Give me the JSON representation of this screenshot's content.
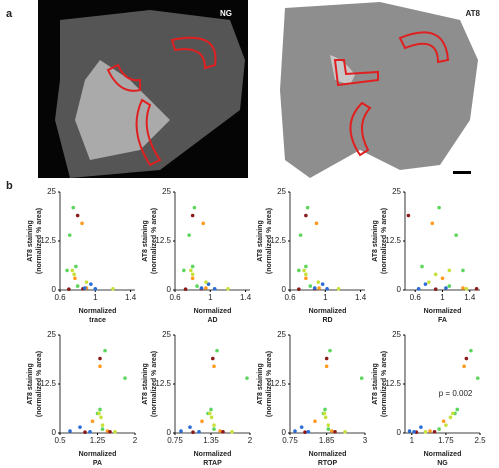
{
  "figure": {
    "panel_a": "a",
    "panel_b": "b",
    "image_labels": [
      "NG",
      "AT8"
    ]
  },
  "chart_data": [
    {
      "type": "scatter",
      "xlabel": [
        "Normalized",
        "trace"
      ],
      "ylabel": [
        "AT8 staining",
        "(normalized % area)"
      ],
      "xlim": [
        0.6,
        1.45
      ],
      "ylim": [
        0,
        25
      ],
      "xticks": [
        0.6,
        1,
        1.4
      ],
      "yticks": [
        0,
        12.5,
        25
      ],
      "series": [
        {
          "color": "#5cd65c",
          "x": [
            0.75,
            0.71,
            0.78,
            0.68,
            0.8
          ],
          "y": [
            21,
            14,
            6,
            5,
            1
          ]
        },
        {
          "color": "#ff9a1f",
          "x": [
            0.85,
            0.77,
            0.9
          ],
          "y": [
            17,
            3,
            0.5
          ]
        },
        {
          "color": "#8b1a1a",
          "x": [
            0.8,
            0.86,
            0.7
          ],
          "y": [
            19,
            0.3,
            0.2
          ]
        },
        {
          "color": "#2a6bd6",
          "x": [
            0.95,
            0.88,
            1.0
          ],
          "y": [
            1.5,
            0.5,
            0.3
          ]
        },
        {
          "color": "#c8e03a",
          "x": [
            0.74,
            0.9,
            1.2,
            0.76
          ],
          "y": [
            5,
            2,
            0.3,
            4
          ]
        }
      ]
    },
    {
      "type": "scatter",
      "xlabel": [
        "Normalized",
        "AD"
      ],
      "ylabel": [
        "AT8 staining",
        "(normalized % area)"
      ],
      "xlim": [
        0.6,
        1.45
      ],
      "ylim": [
        0,
        25
      ],
      "xticks": [
        0.6,
        1,
        1.4
      ],
      "yticks": [
        0,
        12.5,
        25
      ],
      "series": [
        {
          "color": "#5cd65c",
          "x": [
            0.82,
            0.76,
            0.8,
            0.7,
            0.85
          ],
          "y": [
            21,
            14,
            6,
            5,
            1
          ]
        },
        {
          "color": "#ff9a1f",
          "x": [
            0.92,
            0.8,
            0.95
          ],
          "y": [
            17,
            3,
            0.5
          ]
        },
        {
          "color": "#8b1a1a",
          "x": [
            0.8,
            0.9,
            0.72
          ],
          "y": [
            19,
            0.3,
            0.2
          ]
        },
        {
          "color": "#2a6bd6",
          "x": [
            0.98,
            0.9,
            1.05
          ],
          "y": [
            1.5,
            0.5,
            0.3
          ]
        },
        {
          "color": "#c8e03a",
          "x": [
            0.78,
            0.95,
            1.2,
            0.8
          ],
          "y": [
            5,
            2,
            0.3,
            4
          ]
        }
      ]
    },
    {
      "type": "scatter",
      "xlabel": [
        "Normalized",
        "RD"
      ],
      "ylabel": [
        "AT8 staining",
        "(normalized % area)"
      ],
      "xlim": [
        0.6,
        1.45
      ],
      "ylim": [
        0,
        25
      ],
      "xticks": [
        0.6,
        1,
        1.4
      ],
      "yticks": [
        0,
        12.5,
        25
      ],
      "series": [
        {
          "color": "#5cd65c",
          "x": [
            0.8,
            0.72,
            0.78,
            0.7,
            0.83
          ],
          "y": [
            21,
            14,
            6,
            5,
            1
          ]
        },
        {
          "color": "#ff9a1f",
          "x": [
            0.9,
            0.78,
            0.93
          ],
          "y": [
            17,
            3,
            0.5
          ]
        },
        {
          "color": "#8b1a1a",
          "x": [
            0.78,
            0.88,
            0.7
          ],
          "y": [
            19,
            0.3,
            0.2
          ]
        },
        {
          "color": "#2a6bd6",
          "x": [
            0.97,
            0.88,
            1.02
          ],
          "y": [
            1.5,
            0.5,
            0.3
          ]
        },
        {
          "color": "#c8e03a",
          "x": [
            0.76,
            0.92,
            1.15,
            0.78
          ],
          "y": [
            5,
            2,
            0.3,
            4
          ]
        }
      ]
    },
    {
      "type": "scatter",
      "xlabel": [
        "Normalized",
        "FA"
      ],
      "ylabel": [
        "AT8 staining",
        "(normalized % area)"
      ],
      "xlim": [
        0.45,
        1.55
      ],
      "ylim": [
        0,
        25
      ],
      "xticks": [
        0.6,
        1,
        1.4
      ],
      "yticks": [
        0,
        12.5,
        25
      ],
      "series": [
        {
          "color": "#5cd65c",
          "x": [
            0.95,
            1.2,
            0.7,
            1.3,
            1.1
          ],
          "y": [
            21,
            14,
            6,
            5,
            1
          ]
        },
        {
          "color": "#ff9a1f",
          "x": [
            0.85,
            1.0,
            1.3
          ],
          "y": [
            17,
            3,
            0.5
          ]
        },
        {
          "color": "#8b1a1a",
          "x": [
            0.5,
            1.5,
            0.9
          ],
          "y": [
            19,
            0.3,
            0.2
          ]
        },
        {
          "color": "#2a6bd6",
          "x": [
            0.75,
            1.05,
            0.65
          ],
          "y": [
            1.5,
            0.5,
            0.3
          ]
        },
        {
          "color": "#c8e03a",
          "x": [
            1.1,
            0.8,
            1.35,
            0.9
          ],
          "y": [
            5,
            2,
            0.3,
            4
          ]
        }
      ]
    },
    {
      "type": "scatter",
      "xlabel": [
        "Normalized",
        "PA"
      ],
      "ylabel": [
        "AT8 staining",
        "(normalized % area)"
      ],
      "xlim": [
        0.5,
        2
      ],
      "ylim": [
        0,
        25
      ],
      "xticks": [
        0.5,
        1.25,
        2
      ],
      "yticks": [
        0,
        12.5,
        25
      ],
      "series": [
        {
          "color": "#5cd65c",
          "x": [
            1.4,
            1.8,
            1.3,
            1.25,
            1.35
          ],
          "y": [
            21,
            14,
            6,
            5,
            1
          ]
        },
        {
          "color": "#ff9a1f",
          "x": [
            1.3,
            1.15,
            1.45
          ],
          "y": [
            17,
            3,
            0.5
          ]
        },
        {
          "color": "#8b1a1a",
          "x": [
            1.3,
            1.5,
            1.0
          ],
          "y": [
            19,
            0.3,
            0.2
          ]
        },
        {
          "color": "#2a6bd6",
          "x": [
            0.9,
            0.7,
            1.1
          ],
          "y": [
            1.5,
            0.5,
            0.3
          ]
        },
        {
          "color": "#c8e03a",
          "x": [
            1.28,
            1.35,
            1.6,
            1.32
          ],
          "y": [
            5,
            2,
            0.3,
            4
          ]
        }
      ]
    },
    {
      "type": "scatter",
      "xlabel": [
        "Normalized",
        "RTAP"
      ],
      "ylabel": [
        "AT8 staining",
        "(normalized % area)"
      ],
      "xlim": [
        0.75,
        2
      ],
      "ylim": [
        0,
        25
      ],
      "xticks": [
        0.75,
        1.35,
        2
      ],
      "yticks": [
        0,
        12.5,
        25
      ],
      "series": [
        {
          "color": "#5cd65c",
          "x": [
            1.45,
            1.95,
            1.35,
            1.3,
            1.4
          ],
          "y": [
            21,
            14,
            6,
            5,
            1
          ]
        },
        {
          "color": "#ff9a1f",
          "x": [
            1.4,
            1.2,
            1.5
          ],
          "y": [
            17,
            3,
            0.5
          ]
        },
        {
          "color": "#8b1a1a",
          "x": [
            1.38,
            1.55,
            1.05
          ],
          "y": [
            19,
            0.3,
            0.2
          ]
        },
        {
          "color": "#2a6bd6",
          "x": [
            1.0,
            0.85,
            1.15
          ],
          "y": [
            1.5,
            0.5,
            0.3
          ]
        },
        {
          "color": "#c8e03a",
          "x": [
            1.33,
            1.4,
            1.7,
            1.36
          ],
          "y": [
            5,
            2,
            0.3,
            4
          ]
        }
      ]
    },
    {
      "type": "scatter",
      "xlabel": [
        "Normalized",
        "RTOP"
      ],
      "ylabel": [
        "AT8 staining",
        "(normalized % area)"
      ],
      "xlim": [
        0.75,
        3
      ],
      "ylim": [
        0,
        25
      ],
      "xticks": [
        0.75,
        1.85,
        3
      ],
      "yticks": [
        0,
        12.5,
        25
      ],
      "series": [
        {
          "color": "#5cd65c",
          "x": [
            1.95,
            2.9,
            1.8,
            1.75,
            1.9
          ],
          "y": [
            21,
            14,
            6,
            5,
            1
          ]
        },
        {
          "color": "#ff9a1f",
          "x": [
            1.85,
            1.5,
            2.0
          ],
          "y": [
            17,
            3,
            0.5
          ]
        },
        {
          "color": "#8b1a1a",
          "x": [
            1.85,
            2.1,
            1.2
          ],
          "y": [
            19,
            0.3,
            0.2
          ]
        },
        {
          "color": "#2a6bd6",
          "x": [
            1.1,
            0.9,
            1.3
          ],
          "y": [
            1.5,
            0.5,
            0.3
          ]
        },
        {
          "color": "#c8e03a",
          "x": [
            1.78,
            1.9,
            2.4,
            1.82
          ],
          "y": [
            5,
            2,
            0.3,
            4
          ]
        }
      ]
    },
    {
      "type": "scatter",
      "xlabel": [
        "Normalized",
        "NG"
      ],
      "ylabel": [
        "AT8 staining",
        "(normalized % area)"
      ],
      "xlim": [
        0.85,
        2.5
      ],
      "ylim": [
        0,
        25
      ],
      "xticks": [
        1,
        1.75,
        2.5
      ],
      "yticks": [
        0,
        12.5,
        25
      ],
      "annotation": "p = 0.002",
      "series": [
        {
          "color": "#5cd65c",
          "x": [
            2.3,
            2.45,
            2.0,
            1.95,
            1.6
          ],
          "y": [
            21,
            14,
            6,
            5,
            1
          ]
        },
        {
          "color": "#ff9a1f",
          "x": [
            2.15,
            1.7,
            1.4
          ],
          "y": [
            17,
            3,
            0.5
          ]
        },
        {
          "color": "#8b1a1a",
          "x": [
            2.2,
            1.5,
            1.1
          ],
          "y": [
            19,
            0.3,
            0.2
          ]
        },
        {
          "color": "#2a6bd6",
          "x": [
            1.2,
            0.95,
            1.05
          ],
          "y": [
            1.5,
            0.5,
            0.3
          ]
        },
        {
          "color": "#c8e03a",
          "x": [
            1.9,
            1.75,
            1.3,
            1.85
          ],
          "y": [
            5,
            2,
            0.3,
            4
          ]
        }
      ]
    }
  ]
}
